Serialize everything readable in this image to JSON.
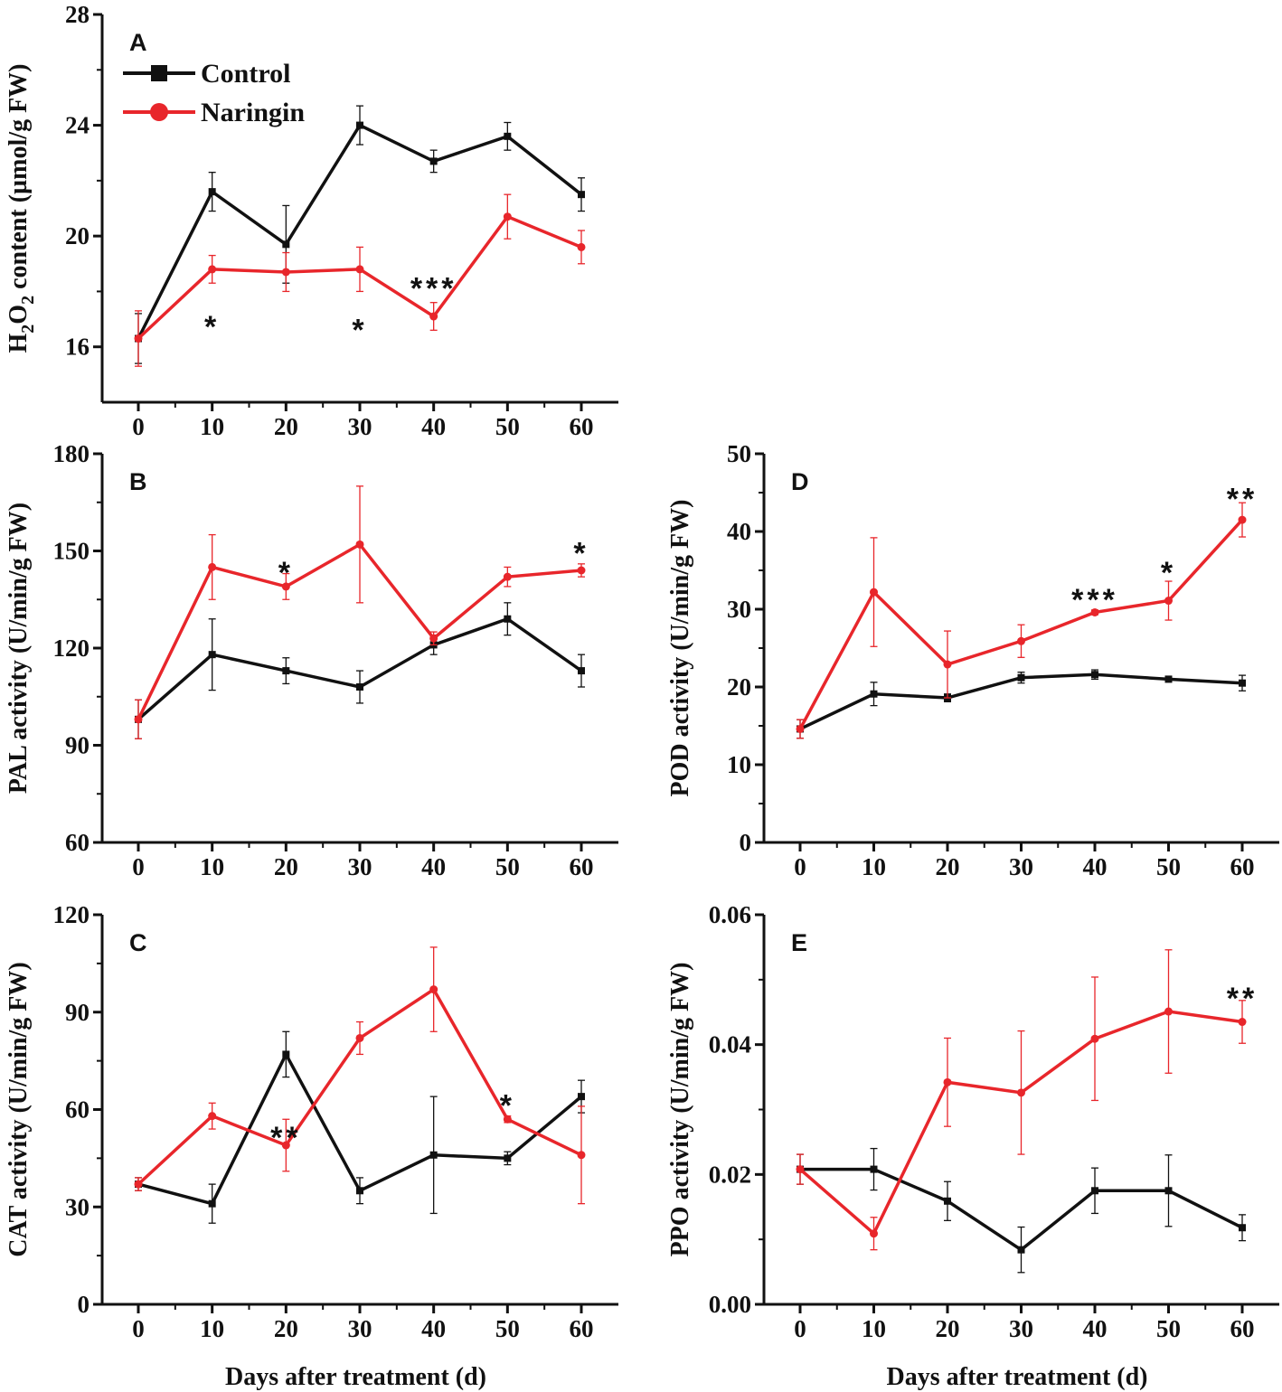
{
  "legend": {
    "entries": [
      "Control",
      "Naringin"
    ]
  },
  "colors": {
    "control": "#111111",
    "naringin": "#e8262b"
  },
  "chart_data": [
    {
      "id": "A",
      "type": "line",
      "panel_label": "A",
      "x": [
        0,
        10,
        20,
        30,
        40,
        50,
        60
      ],
      "xticks": [
        "0",
        "10",
        "20",
        "30",
        "40",
        "50",
        "60"
      ],
      "ylim": [
        14,
        28
      ],
      "yticks": [
        16,
        20,
        24,
        28
      ],
      "ytick_labels": [
        "16",
        "20",
        "24",
        "28"
      ],
      "ylabel_parts": [
        {
          "text": "H",
          "sub": false
        },
        {
          "text": "2",
          "sub": true
        },
        {
          "text": "O",
          "sub": false
        },
        {
          "text": "2",
          "sub": true
        },
        {
          "text": " content (µmol/g FW)",
          "sub": false
        }
      ],
      "xlabel": "",
      "series": [
        {
          "name": "Control",
          "values": [
            16.3,
            21.6,
            19.7,
            24.0,
            22.7,
            23.6,
            21.5
          ],
          "errors": [
            0.9,
            0.7,
            1.4,
            0.7,
            0.4,
            0.5,
            0.6
          ]
        },
        {
          "name": "Naringin",
          "values": [
            16.3,
            18.8,
            18.7,
            18.8,
            17.1,
            20.7,
            19.6
          ],
          "errors": [
            1.0,
            0.5,
            0.7,
            0.8,
            0.5,
            0.8,
            0.6
          ]
        }
      ],
      "significance": [
        {
          "x": 10,
          "y": 16.8,
          "text": "*"
        },
        {
          "x": 30,
          "y": 16.7,
          "text": "*"
        },
        {
          "x": 40,
          "y": 18.2,
          "text": "***"
        }
      ]
    },
    {
      "id": "B",
      "type": "line",
      "panel_label": "B",
      "x": [
        0,
        10,
        20,
        30,
        40,
        50,
        60
      ],
      "xticks": [
        "0",
        "10",
        "20",
        "30",
        "40",
        "50",
        "60"
      ],
      "ylim": [
        60,
        180
      ],
      "yticks": [
        60,
        90,
        120,
        150,
        180
      ],
      "ytick_labels": [
        "60",
        "90",
        "120",
        "150",
        "180"
      ],
      "ylabel_parts": [
        {
          "text": "PAL activity (U/min/g FW)",
          "sub": false
        }
      ],
      "xlabel": "",
      "series": [
        {
          "name": "Control",
          "values": [
            98,
            118,
            113,
            108,
            121,
            129,
            113
          ],
          "errors": [
            6,
            11,
            4,
            5,
            3,
            5,
            5
          ]
        },
        {
          "name": "Naringin",
          "values": [
            98,
            145,
            139,
            152,
            123,
            142,
            144
          ],
          "errors": [
            6,
            10,
            4,
            18,
            2,
            3,
            2
          ]
        }
      ],
      "significance": [
        {
          "x": 20,
          "y": 144,
          "text": "*"
        },
        {
          "x": 60,
          "y": 150,
          "text": "*"
        }
      ]
    },
    {
      "id": "C",
      "type": "line",
      "panel_label": "C",
      "x": [
        0,
        10,
        20,
        30,
        40,
        50,
        60
      ],
      "xticks": [
        "0",
        "10",
        "20",
        "30",
        "40",
        "50",
        "60"
      ],
      "ylim": [
        0,
        120
      ],
      "yticks": [
        0,
        30,
        60,
        90,
        120
      ],
      "ytick_labels": [
        "0",
        "30",
        "60",
        "90",
        "120"
      ],
      "ylabel_parts": [
        {
          "text": "CAT activity (U/min/g FW)",
          "sub": false
        }
      ],
      "xlabel": "Days after treatment (d)",
      "series": [
        {
          "name": "Control",
          "values": [
            37,
            31,
            77,
            35,
            46,
            45,
            64
          ],
          "errors": [
            2,
            6,
            7,
            4,
            18,
            2,
            5
          ]
        },
        {
          "name": "Naringin",
          "values": [
            37,
            58,
            49,
            82,
            97,
            57,
            46
          ],
          "errors": [
            2,
            4,
            8,
            5,
            13,
            1,
            15
          ]
        }
      ],
      "significance": [
        {
          "x": 20,
          "y": 52,
          "text": "**"
        },
        {
          "x": 50,
          "y": 62,
          "text": "*"
        }
      ]
    },
    {
      "id": "D",
      "type": "line",
      "panel_label": "D",
      "x": [
        0,
        10,
        20,
        30,
        40,
        50,
        60
      ],
      "xticks": [
        "0",
        "10",
        "20",
        "30",
        "40",
        "50",
        "60"
      ],
      "ylim": [
        0,
        50
      ],
      "yticks": [
        0,
        10,
        20,
        30,
        40,
        50
      ],
      "ytick_labels": [
        "0",
        "10",
        "20",
        "30",
        "40",
        "50"
      ],
      "ylabel_parts": [
        {
          "text": "POD activity (U/min/g FW)",
          "sub": false
        }
      ],
      "xlabel": "",
      "series": [
        {
          "name": "Control",
          "values": [
            14.6,
            19.1,
            18.6,
            21.2,
            21.6,
            21.0,
            20.5
          ],
          "errors": [
            1.2,
            1.5,
            0.5,
            0.7,
            0.6,
            0.3,
            1.0
          ]
        },
        {
          "name": "Naringin",
          "values": [
            14.6,
            32.2,
            22.9,
            25.9,
            29.6,
            31.1,
            41.5
          ],
          "errors": [
            1.2,
            7.0,
            4.3,
            2.1,
            0.3,
            2.5,
            2.2
          ]
        }
      ],
      "significance": [
        {
          "x": 40,
          "y": 31.5,
          "text": "***"
        },
        {
          "x": 50,
          "y": 35.0,
          "text": "*"
        },
        {
          "x": 60,
          "y": 44.5,
          "text": "**"
        }
      ]
    },
    {
      "id": "E",
      "type": "line",
      "panel_label": "E",
      "x": [
        0,
        10,
        20,
        30,
        40,
        50,
        60
      ],
      "xticks": [
        "0",
        "10",
        "20",
        "30",
        "40",
        "50",
        "60"
      ],
      "ylim": [
        0,
        0.06
      ],
      "yticks": [
        0,
        0.02,
        0.04,
        0.06
      ],
      "ytick_labels": [
        "0.00",
        "0.02",
        "0.04",
        "0.06"
      ],
      "ylabel_parts": [
        {
          "text": "PPO activity (U/min/g FW)",
          "sub": false
        }
      ],
      "xlabel": "Days after treatment (d)",
      "series": [
        {
          "name": "Control",
          "values": [
            0.0208,
            0.0208,
            0.0159,
            0.0084,
            0.0175,
            0.0175,
            0.0118
          ],
          "errors": [
            0.0023,
            0.0032,
            0.003,
            0.0035,
            0.0035,
            0.0055,
            0.002
          ]
        },
        {
          "name": "Naringin",
          "values": [
            0.0208,
            0.0109,
            0.0342,
            0.0326,
            0.0409,
            0.0451,
            0.0435
          ],
          "errors": [
            0.0023,
            0.0025,
            0.0068,
            0.0095,
            0.0095,
            0.0095,
            0.0033
          ]
        }
      ],
      "significance": [
        {
          "x": 60,
          "y": 0.0475,
          "text": "**"
        }
      ]
    }
  ]
}
